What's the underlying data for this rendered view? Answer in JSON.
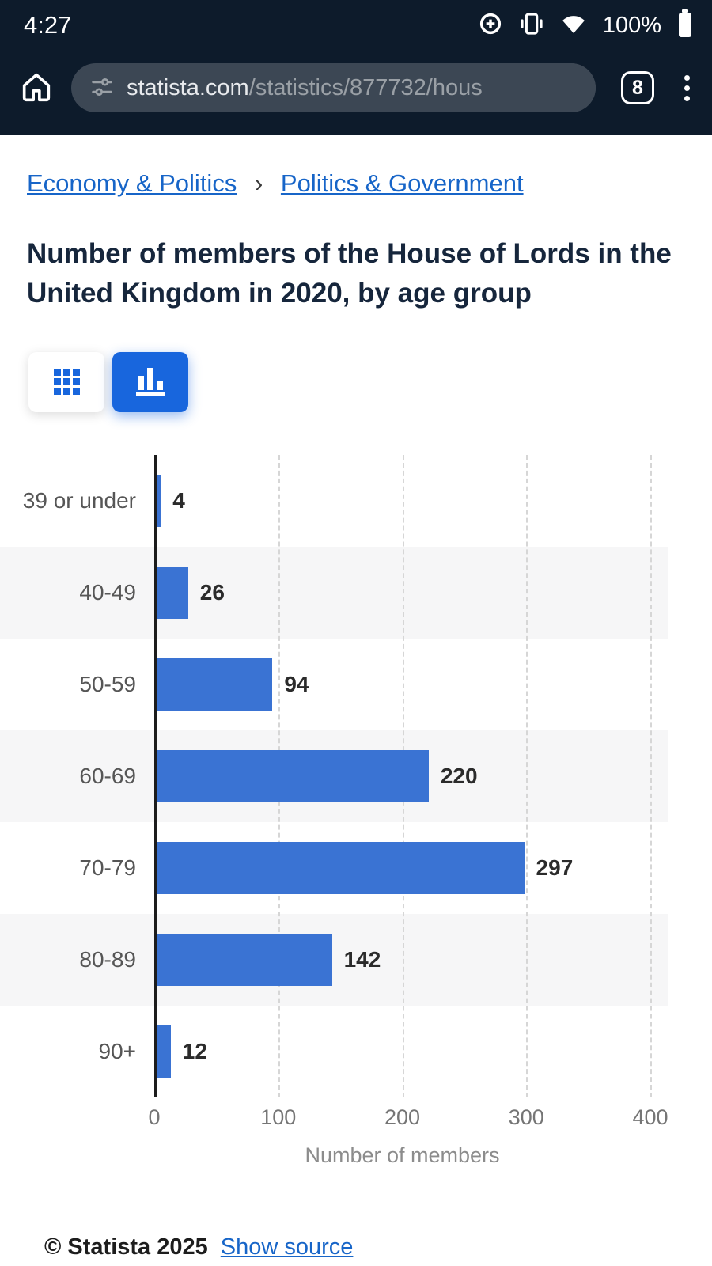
{
  "status_bar": {
    "time": "4:27",
    "battery": "100%"
  },
  "browser": {
    "url_domain": "statista.com",
    "url_path": "/statistics/877732/hous",
    "tab_count": "8"
  },
  "breadcrumb": {
    "separator": "›",
    "items": [
      {
        "label": "Economy & Politics"
      },
      {
        "label": "Politics & Government"
      }
    ]
  },
  "page": {
    "title": "Number of members of the House of Lords in the United Kingdom in 2020, by age group"
  },
  "view_toggle": {
    "table_button": "table-view",
    "chart_button": "chart-view",
    "accent_color": "#1866dd"
  },
  "chart_data": {
    "type": "bar",
    "orientation": "horizontal",
    "title": "Number of members of the House of Lords in the United Kingdom in 2020, by age group",
    "categories": [
      "39 or under",
      "40-49",
      "50-59",
      "60-69",
      "70-79",
      "80-89",
      "90+"
    ],
    "values": [
      4,
      26,
      94,
      220,
      297,
      142,
      12
    ],
    "xlabel": "Number of members",
    "ylabel": "",
    "x_ticks": [
      0,
      100,
      200,
      300,
      400
    ],
    "xlim": [
      0,
      400
    ],
    "grid": "dashed-vertical",
    "bar_color": "#3a73d3",
    "band_color": "#f6f6f7"
  },
  "footer": {
    "copyright": "© Statista 2025",
    "link": "Show source"
  }
}
